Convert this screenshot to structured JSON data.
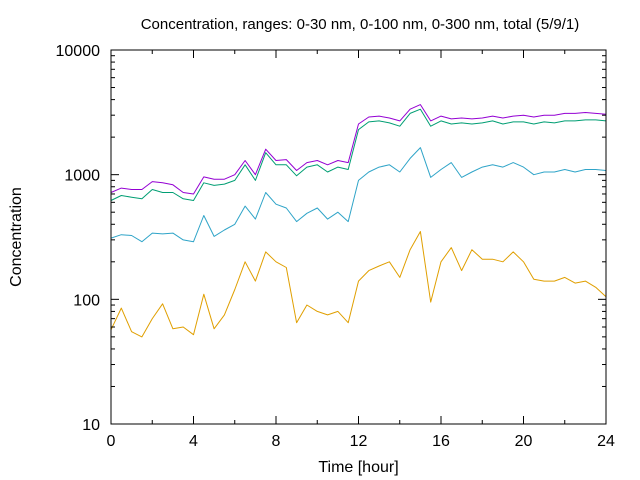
{
  "chart_data": {
    "type": "line",
    "title": "Concentration, ranges: 0-30 nm, 0-100 nm, 0-300 nm, total (5/9/1)",
    "xlabel": "Time [hour]",
    "ylabel": "Concentration",
    "xlim": [
      0,
      24
    ],
    "ylim": [
      10,
      10000
    ],
    "yscale": "log",
    "grid": false,
    "legend": "none",
    "x_ticks": [
      "0",
      "4",
      "8",
      "12",
      "16",
      "20",
      "24"
    ],
    "y_ticks": [
      "10",
      "100",
      "1000",
      "10000"
    ],
    "x": [
      0,
      0.5,
      1,
      1.5,
      2,
      2.5,
      3,
      3.5,
      4,
      4.5,
      5,
      5.5,
      6,
      6.5,
      7,
      7.5,
      8,
      8.5,
      9,
      9.5,
      10,
      10.5,
      11,
      11.5,
      12,
      12.5,
      13,
      13.5,
      14,
      14.5,
      15,
      15.5,
      16,
      16.5,
      17,
      17.5,
      18,
      18.5,
      19,
      19.5,
      20,
      20.5,
      21,
      21.5,
      22,
      22.5,
      23,
      23.5,
      24
    ],
    "series": [
      {
        "color": "#e09f00",
        "values": [
          57,
          85,
          55,
          50,
          70,
          92,
          58,
          60,
          52,
          110,
          58,
          75,
          120,
          200,
          140,
          240,
          200,
          180,
          65,
          90,
          80,
          75,
          80,
          65,
          140,
          170,
          185,
          200,
          150,
          250,
          350,
          95,
          200,
          260,
          170,
          250,
          210,
          210,
          200,
          240,
          200,
          145,
          140,
          140,
          150,
          135,
          140,
          125,
          105
        ]
      },
      {
        "color": "#2fa4c8",
        "values": [
          310,
          330,
          325,
          290,
          340,
          335,
          340,
          300,
          290,
          470,
          320,
          360,
          400,
          560,
          440,
          720,
          580,
          540,
          420,
          490,
          540,
          440,
          500,
          420,
          900,
          1050,
          1150,
          1200,
          1050,
          1350,
          1650,
          950,
          1100,
          1250,
          950,
          1050,
          1150,
          1200,
          1150,
          1250,
          1150,
          1000,
          1050,
          1050,
          1100,
          1050,
          1100,
          1100,
          1080
        ]
      },
      {
        "color": "#009e73",
        "values": [
          620,
          680,
          660,
          640,
          760,
          720,
          720,
          640,
          620,
          860,
          820,
          840,
          900,
          1200,
          900,
          1500,
          1200,
          1200,
          980,
          1150,
          1200,
          1050,
          1150,
          1100,
          2300,
          2650,
          2700,
          2600,
          2450,
          3100,
          3350,
          2450,
          2700,
          2550,
          2600,
          2550,
          2600,
          2700,
          2550,
          2650,
          2650,
          2550,
          2650,
          2600,
          2700,
          2700,
          2750,
          2750,
          2700
        ]
      },
      {
        "color": "#9400d3",
        "values": [
          720,
          780,
          760,
          760,
          880,
          860,
          830,
          720,
          700,
          960,
          920,
          920,
          1000,
          1300,
          1000,
          1600,
          1300,
          1320,
          1080,
          1250,
          1300,
          1200,
          1300,
          1250,
          2550,
          2900,
          2950,
          2850,
          2700,
          3350,
          3650,
          2700,
          2950,
          2800,
          2850,
          2800,
          2850,
          2950,
          2850,
          2950,
          3000,
          2900,
          3000,
          3000,
          3100,
          3100,
          3150,
          3100,
          3050
        ]
      }
    ]
  }
}
